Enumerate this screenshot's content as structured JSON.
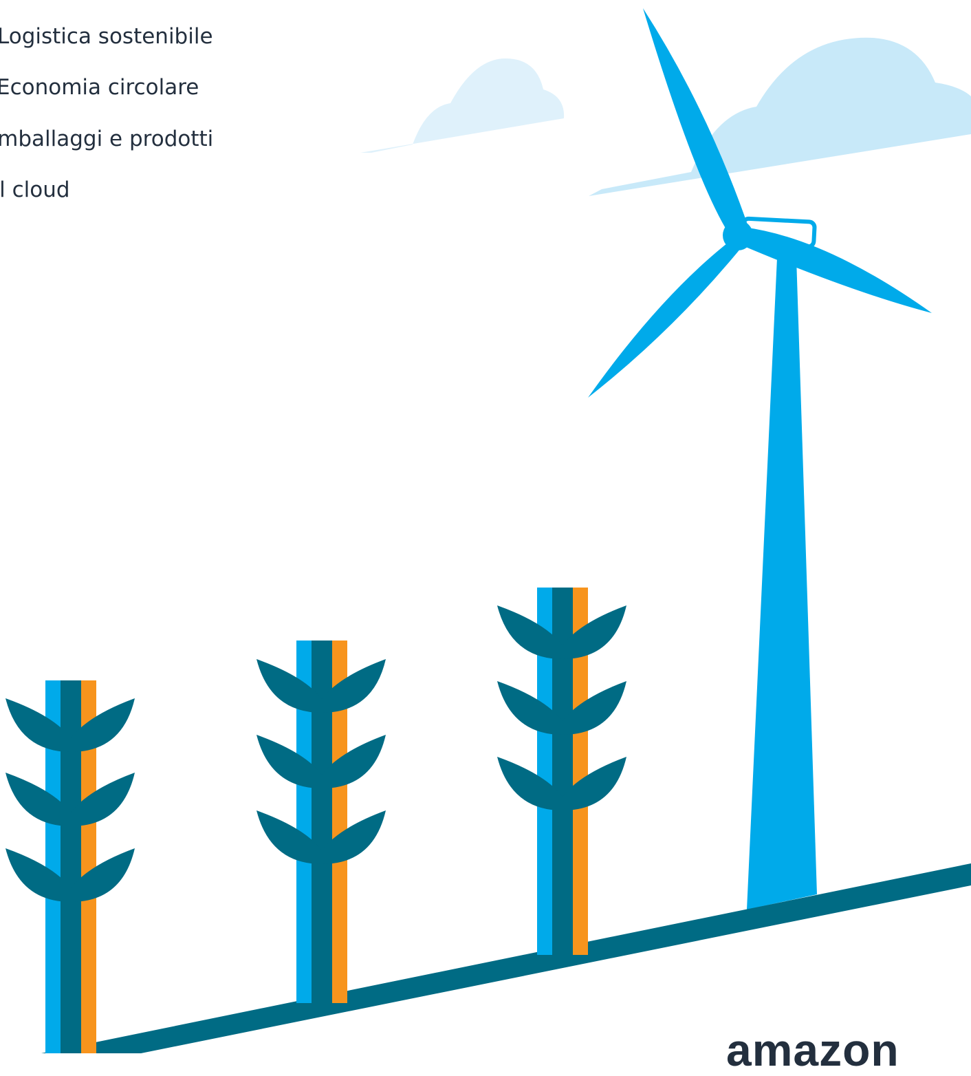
{
  "menu": {
    "items": [
      "Logistica sostenibile",
      "Economia circolare",
      "Imballaggi e prodotti",
      "Il cloud"
    ]
  },
  "logo": {
    "text": "amazon"
  }
}
